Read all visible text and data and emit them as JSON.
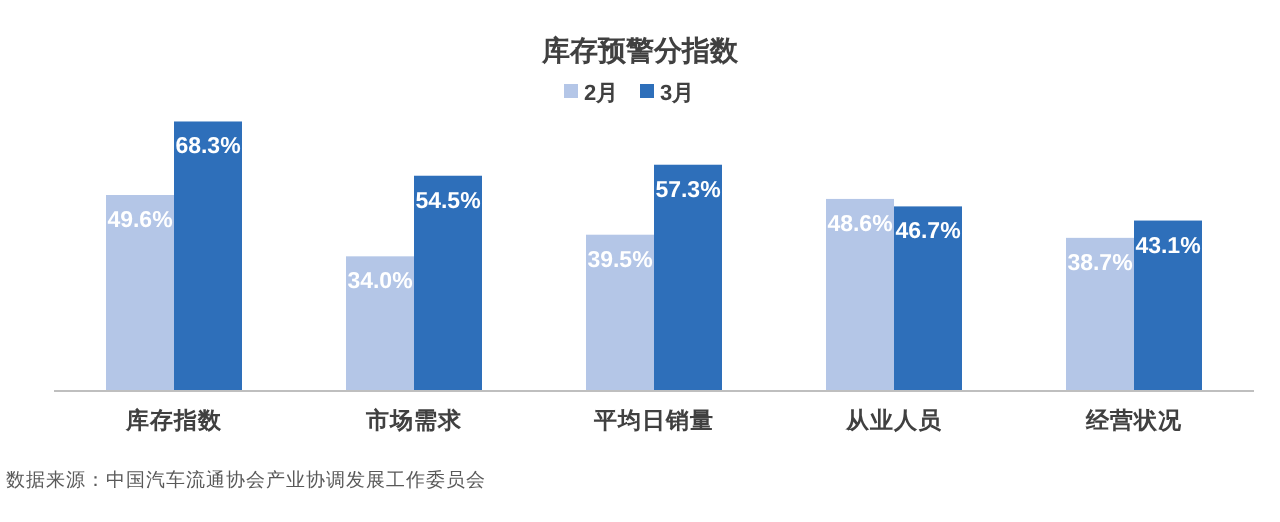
{
  "chart_data": {
    "type": "bar",
    "title": "库存预警分指数",
    "categories": [
      "库存指数",
      "市场需求",
      "平均日销量",
      "从业人员",
      "经营状况"
    ],
    "series": [
      {
        "name": "2月",
        "color": "#b4c6e7",
        "values": [
          49.6,
          34.0,
          39.5,
          48.6,
          38.7
        ],
        "value_labels": [
          "49.6%",
          "34.0%",
          "39.5%",
          "48.6%",
          "38.7%"
        ]
      },
      {
        "name": "3月",
        "color": "#2e6fba",
        "values": [
          68.3,
          54.5,
          57.3,
          46.7,
          43.1
        ],
        "value_labels": [
          "68.3%",
          "54.5%",
          "57.3%",
          "46.7%",
          "43.1%"
        ]
      }
    ],
    "legend": "top",
    "annotations": [
      "数据来源：中国汽车流通协会产业协调发展工作委员会"
    ]
  }
}
